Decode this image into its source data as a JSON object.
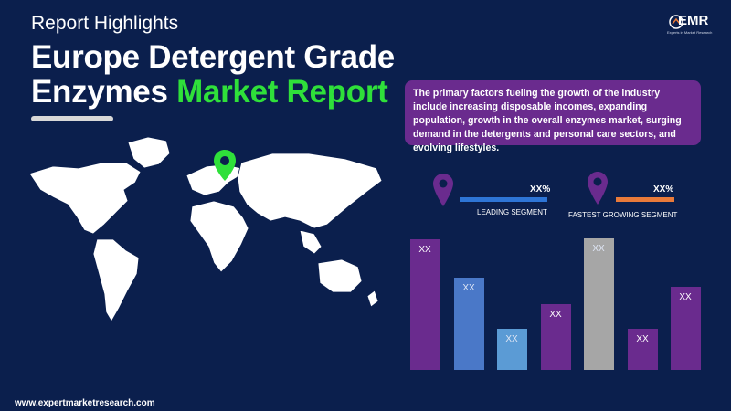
{
  "header": {
    "subtitle": "Report Highlights",
    "title_line1": "Europe Detergent Grade",
    "title_line2_white": "Enzymes",
    "title_line2_green": "Market Report"
  },
  "logo": {
    "text": "EMR",
    "tagline": "Experts in Market Research"
  },
  "info_box": {
    "text": "The primary factors fueling the growth of the industry include increasing disposable incomes, expanding population, growth in the overall enzymes market, surging demand in the detergents and personal care sectors, and evolving lifestyles."
  },
  "legend": {
    "leading": {
      "value": "XX%",
      "label": "LEADING SEGMENT"
    },
    "fastest": {
      "value": "XX%",
      "label": "FASTEST GROWING SEGMENT"
    }
  },
  "chart_data": {
    "type": "bar",
    "values": [
      0.85,
      0.6,
      0.27,
      0.43,
      0.86,
      0.27,
      0.54
    ],
    "labels": [
      "XX",
      "XX",
      "XX",
      "XX",
      "XX",
      "XX",
      "XX"
    ],
    "colors": [
      "#6a2b8e",
      "#4a78c8",
      "#5b9bd5",
      "#6a2b8e",
      "#a6a6a6",
      "#6a2b8e",
      "#6a2b8e"
    ]
  },
  "footer": {
    "url": "www.expertmarketresearch.com"
  },
  "colors": {
    "background": "#0b1f4d",
    "accent_green": "#2fe03a",
    "purple": "#6a2b8e",
    "blue": "#2e75d6",
    "orange": "#e97a3a"
  }
}
